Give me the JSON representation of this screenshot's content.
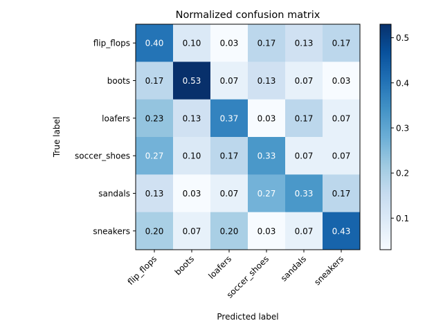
{
  "chart_data": {
    "type": "heatmap",
    "title": "Normalized confusion matrix",
    "xlabel": "Predicted label",
    "ylabel": "True label",
    "x_categories": [
      "flip_flops",
      "boots",
      "loafers",
      "soccer_shoes",
      "sandals",
      "sneakers"
    ],
    "y_categories": [
      "flip_flops",
      "boots",
      "loafers",
      "soccer_shoes",
      "sandals",
      "sneakers"
    ],
    "values": [
      [
        0.4,
        0.1,
        0.03,
        0.17,
        0.13,
        0.17
      ],
      [
        0.17,
        0.53,
        0.07,
        0.13,
        0.07,
        0.03
      ],
      [
        0.23,
        0.13,
        0.37,
        0.03,
        0.17,
        0.07
      ],
      [
        0.27,
        0.1,
        0.17,
        0.33,
        0.07,
        0.07
      ],
      [
        0.13,
        0.03,
        0.07,
        0.27,
        0.33,
        0.17
      ],
      [
        0.2,
        0.07,
        0.2,
        0.03,
        0.07,
        0.43
      ]
    ],
    "value_format": "0.00",
    "colormap": "Blues",
    "color_range": [
      0.03,
      0.53
    ],
    "colorbar": {
      "ticks": [
        0.1,
        0.2,
        0.3,
        0.4,
        0.5
      ],
      "tick_labels": [
        "0.1",
        "0.2",
        "0.3",
        "0.4",
        "0.5"
      ]
    },
    "annotation_text_colors": {
      "dark": "#000000",
      "light": "#ffffff"
    },
    "grid": false,
    "legend": "none"
  }
}
